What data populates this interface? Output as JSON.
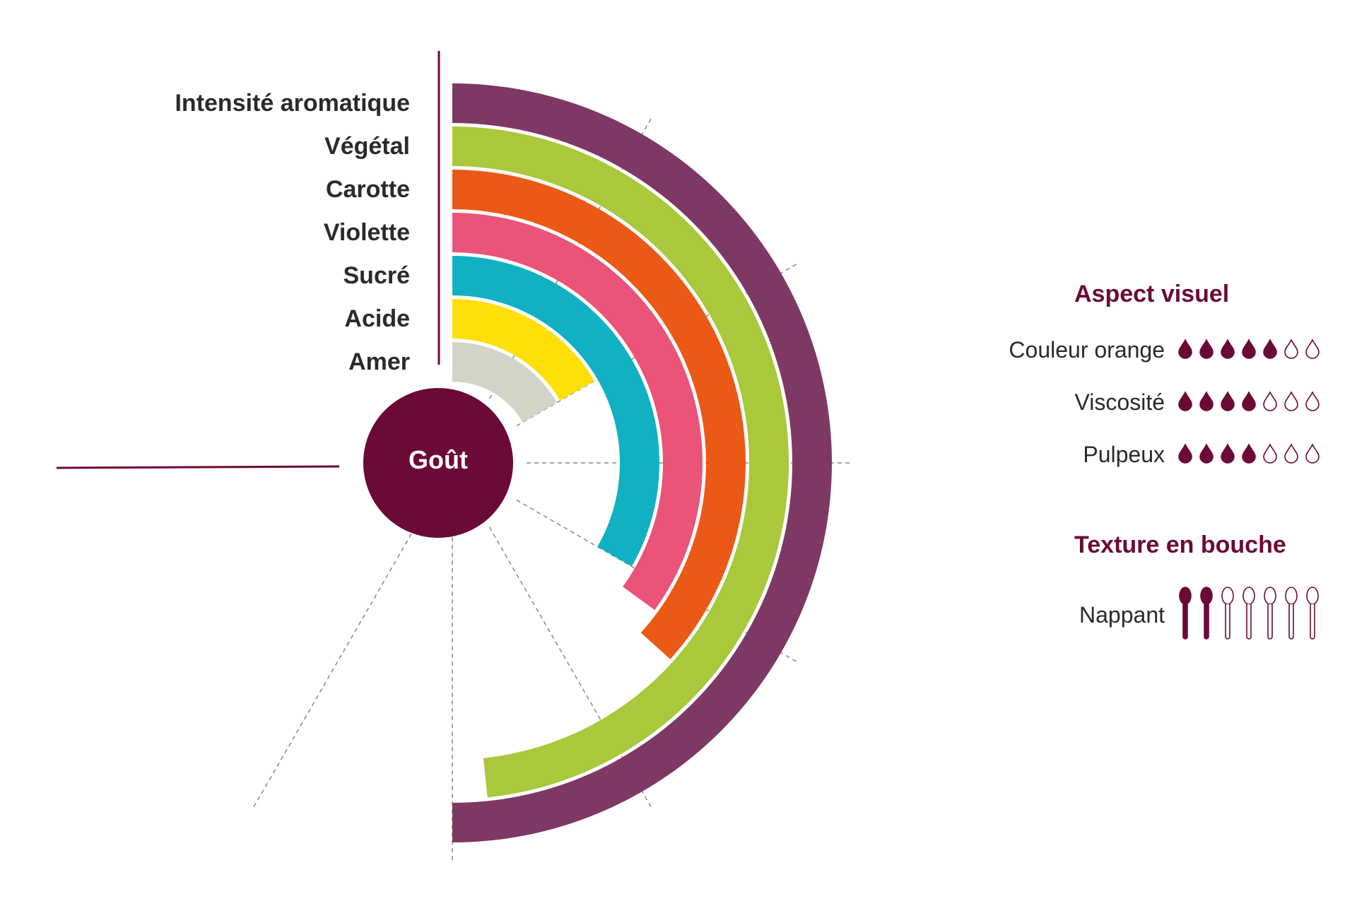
{
  "chart_data": {
    "type": "radial_bar",
    "title": "",
    "center_label": "Goût",
    "scale_max": 7,
    "series": [
      {
        "name": "Intensité aromatique",
        "value": 6.0,
        "color": "#7e3864"
      },
      {
        "name": "Végétal",
        "value": 5.8,
        "color": "#a9c83b"
      },
      {
        "name": "Carotte",
        "value": 4.4,
        "color": "#ea5a16"
      },
      {
        "name": "Violette",
        "value": 4.2,
        "color": "#ea5479"
      },
      {
        "name": "Sucré",
        "value": 4.0,
        "color": "#11b1c3"
      },
      {
        "name": "Acide",
        "value": 2.0,
        "color": "#fde00a"
      },
      {
        "name": "Amer",
        "value": 2.0,
        "color": "#d1d4c6"
      }
    ]
  },
  "aspect_visuel": {
    "title": "Aspect visuel",
    "icon": "drop-icon",
    "max": 7,
    "filled_color": "#6b0a36",
    "items": [
      {
        "label": "Couleur orange",
        "value": 5
      },
      {
        "label": "Viscosité",
        "value": 4
      },
      {
        "label": "Pulpeux",
        "value": 4
      }
    ]
  },
  "texture": {
    "title": "Texture en bouche",
    "icon": "spoon-icon",
    "max": 7,
    "items": [
      {
        "label": "Nappant",
        "value": 2
      }
    ]
  }
}
